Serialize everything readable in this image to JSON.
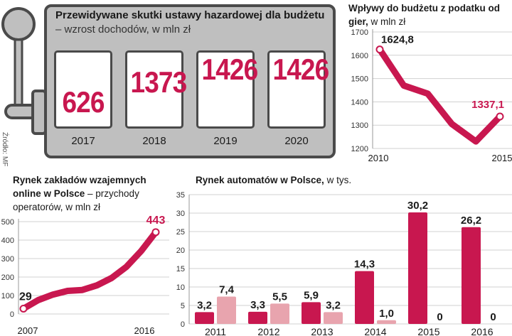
{
  "source": "Źródło: MF",
  "chart_data": [
    {
      "type": "table",
      "title_bold": "Przewidywane skutki ustawy hazardowej dla budżetu",
      "title_rest": " – wzrost dochodów, w mln zł",
      "categories": [
        "2017",
        "2018",
        "2019",
        "2020"
      ],
      "values": [
        626,
        1373,
        1426,
        1426
      ]
    },
    {
      "type": "line",
      "title_bold": "Wpływy do budżetu z podatku od gier,",
      "title_rest": " w mln zł",
      "x": [
        2010,
        2011,
        2012,
        2013,
        2014,
        2015
      ],
      "y": [
        1624.8,
        1470,
        1435,
        1305,
        1230,
        1337.1
      ],
      "labels": [
        "1624,8",
        "1337,1"
      ],
      "ylim": [
        1200,
        1700
      ],
      "yticks": [
        "1200",
        "1300",
        "1400",
        "1500",
        "1600",
        "1700"
      ],
      "xticks": [
        "2010",
        "2015"
      ],
      "color": "#c8174f"
    },
    {
      "type": "line",
      "title_bold_1": "Rynek zakładów wzajemnych",
      "title_bold_2": "online w Polsce",
      "title_rest_1": " – przychody",
      "title_rest_2": "operatorów, w mln zł",
      "x": [
        2007,
        2008,
        2009,
        2010,
        2011,
        2012,
        2013,
        2014,
        2015,
        2016
      ],
      "y": [
        29,
        75,
        105,
        125,
        130,
        155,
        195,
        255,
        340,
        443
      ],
      "labels": [
        "29",
        "443"
      ],
      "ylim": [
        0,
        500
      ],
      "yticks": [
        "0",
        "100",
        "200",
        "300",
        "400",
        "500"
      ],
      "xticks": [
        "2007",
        "2016"
      ],
      "color": "#c8174f"
    },
    {
      "type": "bar",
      "title_bold": "Rynek automatów w Polsce,",
      "title_rest": " w tys.",
      "categories": [
        "2011",
        "2012",
        "2013",
        "2014",
        "2015",
        "2016"
      ],
      "series": [
        {
          "values": [
            3.2,
            3.3,
            5.9,
            14.3,
            30.2,
            26.2
          ],
          "labels": [
            "3,2",
            "3,3",
            "5,9",
            "14,3",
            "30,2",
            "26,2"
          ],
          "color": "#c8174f"
        },
        {
          "values": [
            7.4,
            5.5,
            3.2,
            1.0,
            0,
            0
          ],
          "labels": [
            "7,4",
            "5,5",
            "3,2",
            "1,0",
            "0",
            "0"
          ],
          "color": "#e8a4ae"
        }
      ],
      "ylim": [
        0,
        35
      ],
      "yticks": [
        "0",
        "5",
        "10",
        "15",
        "20",
        "25",
        "30",
        "35"
      ]
    }
  ]
}
